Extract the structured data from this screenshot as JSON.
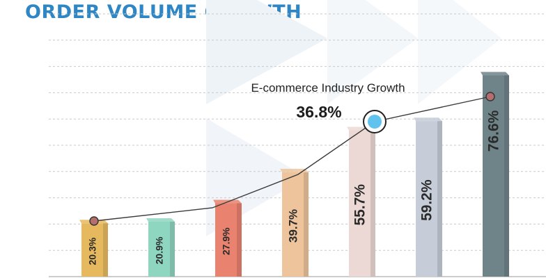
{
  "chart_data": {
    "type": "bar",
    "title": "ORDER VOLUME GROWTH",
    "categories": [
      "",
      "",
      "",
      "",
      "",
      "",
      ""
    ],
    "series": [
      {
        "values": [
          20.3,
          20.9,
          27.9,
          39.7,
          55.7,
          59.2,
          76.6
        ],
        "value_labels": [
          "20.3%",
          "20.9%",
          "27.9%",
          "39.7%",
          "55.7%",
          "59.2%",
          "76.6%"
        ],
        "colors": [
          "#e7b95f",
          "#8fd6c0",
          "#e9826f",
          "#edc49c",
          "#ecd9d5",
          "#c6ccd8",
          "#6f8489"
        ]
      },
      {
        "name": "E-commerce Industry Growth",
        "type": "line",
        "highlight_value": "36.8%",
        "highlight_index": 4,
        "line_color": "#3a3a3a",
        "marker_color": "#b56e6e",
        "highlight_color": "#5fc3ee"
      }
    ],
    "grid": true,
    "legend": "none",
    "ylim": [
      0,
      100
    ]
  },
  "colors": {
    "title": "#2f86c4",
    "gridline": "#c9c9c9",
    "background_shape": "#eef3f8"
  }
}
